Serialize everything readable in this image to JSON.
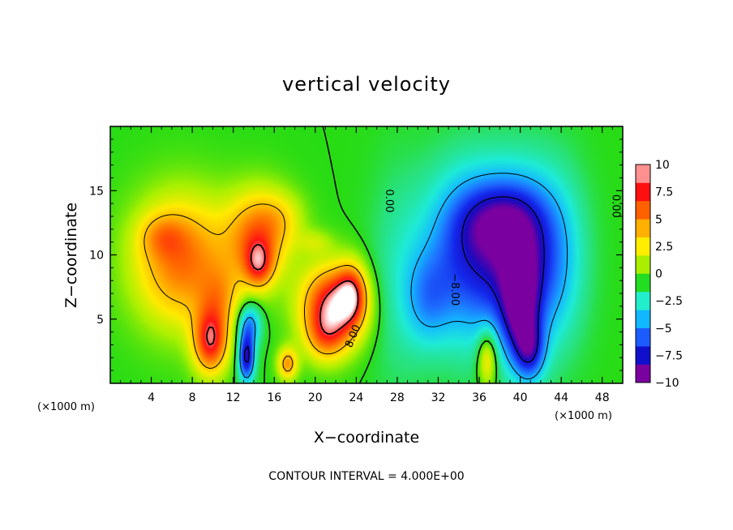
{
  "chart_data": {
    "type": "heatmap",
    "title": "vertical velocity",
    "xlabel": "X−coordinate",
    "ylabel": "Z−coordinate",
    "x_unit_left": "(×1000 m)",
    "x_unit_right": "(×1000 m)",
    "xlim": [
      0,
      50
    ],
    "ylim": [
      0,
      20
    ],
    "x_ticks": [
      4,
      8,
      12,
      16,
      20,
      24,
      28,
      32,
      36,
      40,
      44,
      48
    ],
    "y_ticks": [
      5,
      10,
      15
    ],
    "contour_interval_label": "CONTOUR INTERVAL = 4.000E+00",
    "contour_labels": [
      {
        "text": "0.00",
        "x": 27.3,
        "y": 14.2
      },
      {
        "text": "0.00",
        "x": 49.4,
        "y": 13.8
      },
      {
        "text": "−8.00",
        "x": 33.7,
        "y": 7.3
      },
      {
        "text": "8.00",
        "x": 23.6,
        "y": 3.7
      }
    ],
    "colorbar": {
      "min": -10,
      "max": 10,
      "tick_labels": [
        "10",
        "7.5",
        "5",
        "2.5",
        "0",
        "−2.5",
        "−5",
        "−7.5",
        "−10"
      ],
      "tick_values": [
        10,
        7.5,
        5,
        2.5,
        0,
        -2.5,
        -5,
        -7.5,
        -10
      ],
      "colors": [
        "#7a00a0",
        "#1010cc",
        "#1c5cff",
        "#12b8ff",
        "#22eecc",
        "#22dd22",
        "#aaee00",
        "#ffee00",
        "#ffb000",
        "#ff6000",
        "#ff1010",
        "#ff9090"
      ]
    },
    "features": [
      {
        "x": 7.0,
        "z": 9.5,
        "w": 9.0,
        "amp": 5.8,
        "sx": 3.4,
        "sz": 3.6
      },
      {
        "x": 5.0,
        "z": 11.5,
        "w": 1.0,
        "amp": 2.0,
        "sx": 1.6,
        "sz": 1.2
      },
      {
        "x": 9.8,
        "z": 3.2,
        "w": 1.0,
        "amp": 7.0,
        "sx": 1.2,
        "sz": 1.8
      },
      {
        "x": 10.8,
        "z": 6.6,
        "w": 1.0,
        "amp": 2.4,
        "sx": 1.4,
        "sz": 1.8
      },
      {
        "x": 14.5,
        "z": 11.5,
        "w": 1.0,
        "amp": 5.5,
        "sx": 2.2,
        "sz": 2.5
      },
      {
        "x": 14.5,
        "z": 9.2,
        "w": 1.0,
        "amp": 4.5,
        "sx": 1.0,
        "sz": 1.3
      },
      {
        "x": 17.0,
        "z": 13.0,
        "w": 1.0,
        "amp": 1.4,
        "sx": 1.6,
        "sz": 1.4
      },
      {
        "x": 20.0,
        "z": 11.0,
        "w": 1.0,
        "amp": 1.5,
        "sx": 1.2,
        "sz": 0.7
      },
      {
        "x": 13.3,
        "z": 2.0,
        "w": 1.0,
        "amp": -8.5,
        "sx": 0.55,
        "sz": 1.3
      },
      {
        "x": 13.6,
        "z": 4.6,
        "w": 1.0,
        "amp": -5.0,
        "sx": 0.8,
        "sz": 1.2
      },
      {
        "x": 17.3,
        "z": 1.5,
        "w": 1.0,
        "amp": 4.8,
        "sx": 0.7,
        "sz": 0.9
      },
      {
        "x": 21.8,
        "z": 6.0,
        "w": 1.0,
        "amp": 8.5,
        "sx": 2.2,
        "sz": 2.2
      },
      {
        "x": 23.6,
        "z": 7.0,
        "w": 1.0,
        "amp": 4.5,
        "sx": 1.0,
        "sz": 1.6
      },
      {
        "x": 21.0,
        "z": 3.5,
        "w": 1.0,
        "amp": 3.0,
        "sx": 1.4,
        "sz": 1.4
      },
      {
        "x": 35.0,
        "z": 10.0,
        "w": 1.0,
        "amp": -6.5,
        "sx": 3.2,
        "sz": 4.6
      },
      {
        "x": 40.5,
        "z": 9.5,
        "w": 1.0,
        "amp": -7.0,
        "sx": 2.8,
        "sz": 4.6
      },
      {
        "x": 38.0,
        "z": 12.8,
        "w": 1.0,
        "amp": -4.0,
        "sx": 2.8,
        "sz": 2.0
      },
      {
        "x": 40.0,
        "z": 6.0,
        "w": 1.0,
        "amp": -6.5,
        "sx": 1.2,
        "sz": 3.0
      },
      {
        "x": 41.0,
        "z": 2.5,
        "w": 1.0,
        "amp": -5.0,
        "sx": 1.0,
        "sz": 1.6
      },
      {
        "x": 36.8,
        "z": 2.0,
        "w": 1.0,
        "amp": 4.5,
        "sx": 0.7,
        "sz": 1.6
      },
      {
        "x": 31.0,
        "z": 6.5,
        "w": 1.0,
        "amp": -3.0,
        "sx": 1.6,
        "sz": 2.5
      },
      {
        "x": 28.0,
        "z": 8.0,
        "w": 1.0,
        "amp": -1.5,
        "sx": 2.0,
        "sz": 6.0
      },
      {
        "x": 44.0,
        "z": 10.0,
        "w": 1.0,
        "amp": -1.5,
        "sx": 2.0,
        "sz": 5.0
      }
    ]
  }
}
